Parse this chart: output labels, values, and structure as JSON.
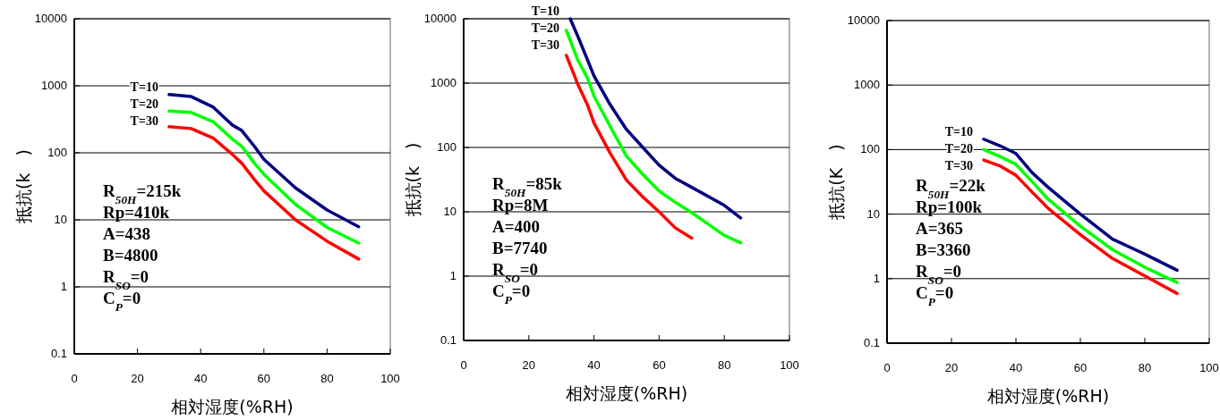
{
  "chart_data": [
    {
      "type": "line",
      "xlabel": "相対湿度(%RH)",
      "ylabel": "抵抗(k　)",
      "log": "y",
      "grid": "y",
      "xlim": [
        0,
        100
      ],
      "xticks": [
        0,
        20,
        40,
        60,
        80,
        100
      ],
      "ylim": [
        0.1,
        10000
      ],
      "yticks": [
        0.1,
        1,
        10,
        100,
        1000,
        10000
      ],
      "annotations": [
        "R$_{50H}$=215k",
        "Rp=410k",
        "A=438",
        "B=4800",
        "R$_{SO}$=0",
        "C$_{P}$=0"
      ],
      "series": [
        {
          "name": "T=10",
          "color": "#000080",
          "x": [
            30,
            37,
            44,
            50,
            53,
            57,
            60,
            70,
            80,
            90
          ],
          "values": [
            740,
            690,
            480,
            260,
            215,
            125,
            80,
            30,
            14,
            7.9
          ]
        },
        {
          "name": "T=20",
          "color": "#00ff00",
          "x": [
            30,
            37,
            44,
            50,
            53,
            57,
            60,
            70,
            80,
            90
          ],
          "values": [
            420,
            400,
            290,
            160,
            125,
            70,
            48,
            17,
            7.7,
            4.5
          ]
        },
        {
          "name": "T=30",
          "color": "#ff0000",
          "x": [
            30,
            37,
            44,
            50,
            53,
            57,
            60,
            70,
            80,
            90
          ],
          "values": [
            245,
            230,
            165,
            95,
            70,
            40,
            27,
            10,
            4.8,
            2.6
          ]
        }
      ]
    },
    {
      "type": "line",
      "xlabel": "相対湿度(%RH)",
      "ylabel": "抵抗(k　)",
      "log": "y",
      "grid": "y",
      "xlim": [
        0,
        100
      ],
      "xticks": [
        0,
        20,
        40,
        60,
        80,
        100
      ],
      "ylim": [
        0.1,
        10000
      ],
      "yticks": [
        0.1,
        1,
        10,
        100,
        1000,
        10000
      ],
      "annotations": [
        "R$_{50H}$=85k",
        "Rp=8M",
        "A=400",
        "B=7740",
        "R$_{SO}$=0",
        "C$_{P}$=0"
      ],
      "series": [
        {
          "name": "T=10",
          "color": "#000080",
          "x": [
            32.7,
            35,
            38,
            40,
            45,
            50,
            55,
            60,
            65,
            70,
            80,
            85
          ],
          "values": [
            10000,
            5400,
            2300,
            1300,
            460,
            190,
            100,
            53,
            33,
            24,
            12.6,
            8
          ]
        },
        {
          "name": "T=20",
          "color": "#00ff00",
          "x": [
            31.5,
            35,
            38,
            40,
            45,
            50,
            55,
            60,
            65,
            70,
            80,
            85
          ],
          "values": [
            6600,
            2300,
            1200,
            630,
            210,
            73,
            38,
            21,
            14,
            9.7,
            4.3,
            3.3
          ]
        },
        {
          "name": "T=30",
          "color": "#ff0000",
          "x": [
            31.5,
            35,
            38,
            40,
            45,
            50,
            55,
            60,
            65,
            70
          ],
          "values": [
            2700,
            970,
            460,
            240,
            81,
            31,
            17,
            10,
            5.6,
            3.9
          ]
        }
      ]
    },
    {
      "type": "line",
      "xlabel": "相対湿度(%RH)",
      "ylabel": "抵抗(K　)",
      "log": "y",
      "grid": "y",
      "xlim": [
        0,
        100
      ],
      "xticks": [
        0,
        20,
        40,
        60,
        80,
        100
      ],
      "ylim": [
        0.1,
        10000
      ],
      "yticks": [
        0.1,
        1,
        10,
        100,
        1000,
        10000
      ],
      "annotations": [
        "R$_{50H}$=22k",
        "Rp=100k",
        "A=365",
        "B=3360",
        "R$_{SO}$=0",
        "C$_{P}$=0"
      ],
      "series": [
        {
          "name": "T=10",
          "color": "#000080",
          "x": [
            30,
            35,
            40,
            45,
            50,
            60,
            70,
            80,
            90
          ],
          "values": [
            145,
            115,
            87,
            44,
            26,
            10,
            4.1,
            2.4,
            1.35
          ]
        },
        {
          "name": "T=20",
          "color": "#00ff00",
          "x": [
            30,
            35,
            40,
            45,
            50,
            60,
            70,
            80,
            90
          ],
          "values": [
            100,
            78,
            59,
            32,
            17,
            6.5,
            2.8,
            1.5,
            0.87
          ]
        },
        {
          "name": "T=30",
          "color": "#ff0000",
          "x": [
            30,
            35,
            40,
            45,
            50,
            60,
            70,
            80,
            90
          ],
          "values": [
            69,
            56,
            40,
            22,
            12.3,
            4.8,
            2.05,
            1.1,
            0.59
          ]
        }
      ]
    }
  ]
}
